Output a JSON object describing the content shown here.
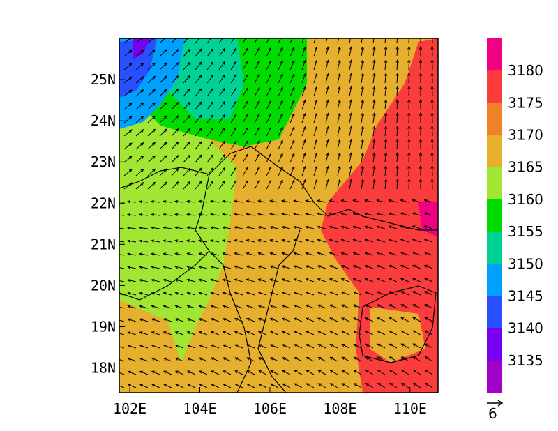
{
  "map": {
    "lon_range": [
      101.7,
      110.8
    ],
    "lat_range": [
      17.4,
      26.0
    ],
    "x_ticks": [
      {
        "value": 102,
        "label": "102E"
      },
      {
        "value": 104,
        "label": "104E"
      },
      {
        "value": 106,
        "label": "106E"
      },
      {
        "value": 108,
        "label": "108E"
      },
      {
        "value": 110,
        "label": "110E"
      }
    ],
    "y_ticks": [
      {
        "value": 18,
        "label": "18N"
      },
      {
        "value": 19,
        "label": "19N"
      },
      {
        "value": 20,
        "label": "20N"
      },
      {
        "value": 21,
        "label": "21N"
      },
      {
        "value": 22,
        "label": "22N"
      },
      {
        "value": 23,
        "label": "23N"
      },
      {
        "value": 24,
        "label": "24N"
      },
      {
        "value": 25,
        "label": "25N"
      }
    ],
    "field": "geopotential height contours",
    "vectors": "wind arrows"
  },
  "colorbar": {
    "levels": [
      "3135",
      "3140",
      "3145",
      "3150",
      "3155",
      "3160",
      "3165",
      "3170",
      "3175",
      "3180"
    ],
    "colors": [
      "#a000c8",
      "#7800f0",
      "#2850ff",
      "#00a0ff",
      "#00d296",
      "#00dc00",
      "#a0e632",
      "#e6af2d",
      "#f08228",
      "#fa3c3c",
      "#f00082"
    ]
  },
  "reference_vector": {
    "label": "6"
  },
  "chart_data": {
    "type": "heatmap",
    "title": "",
    "xlabel": "",
    "ylabel": "",
    "xlim": [
      101.7,
      110.8
    ],
    "ylim": [
      17.4,
      26.0
    ],
    "x_ticks": [
      "102E",
      "104E",
      "106E",
      "108E",
      "110E"
    ],
    "y_ticks": [
      "18N",
      "19N",
      "20N",
      "21N",
      "22N",
      "23N",
      "24N",
      "25N"
    ],
    "color_levels": [
      3135,
      3140,
      3145,
      3150,
      3155,
      3160,
      3165,
      3170,
      3175,
      3180
    ],
    "regions": [
      {
        "area": "northwest corner",
        "value_range": "3135-3145"
      },
      {
        "area": "north-central",
        "value_range": "3150-3160"
      },
      {
        "area": "west",
        "value_range": "3160-3165"
      },
      {
        "area": "center and south",
        "value_range": "3165-3170"
      },
      {
        "area": "east and southeast",
        "value_range": "3175-3180"
      }
    ],
    "vector_reference": 6
  }
}
